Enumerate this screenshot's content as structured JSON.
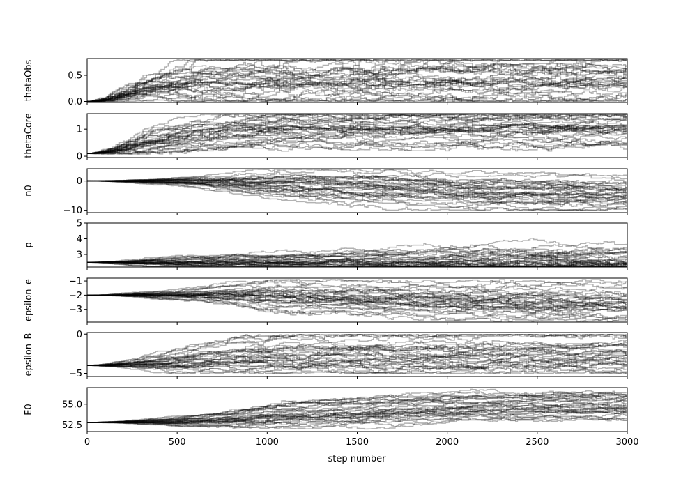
{
  "chart_data": {
    "type": "line",
    "title": "",
    "xlabel": "step number",
    "xlim": [
      0,
      3000
    ],
    "xticks": [
      0,
      500,
      1000,
      1500,
      2000,
      2500,
      3000
    ],
    "xtick_labels": [
      "0",
      "500",
      "1000",
      "1500",
      "2000",
      "2500",
      "3000"
    ],
    "n_steps": 3000,
    "n_walkers": 32,
    "series_color": "#000000",
    "series_alpha": 0.3,
    "grid": false,
    "legend": "none",
    "panels": [
      {
        "ylabel": "thetaObs",
        "ylim": [
          -0.02,
          0.82
        ],
        "yticks": [
          0.0,
          0.5
        ],
        "ytick_labels": [
          "0.0",
          "0.5"
        ],
        "start": 0.0,
        "low": 0.0,
        "high": 0.8,
        "center": [
          [
            0,
            0.0
          ],
          [
            300,
            0.35
          ],
          [
            3000,
            0.4
          ]
        ],
        "spread": [
          [
            0,
            0.0
          ],
          [
            200,
            0.15
          ],
          [
            600,
            0.3
          ],
          [
            3000,
            0.3
          ]
        ]
      },
      {
        "ylabel": "thetaCore",
        "ylim": [
          -0.05,
          1.57
        ],
        "yticks": [
          0,
          1
        ],
        "ytick_labels": [
          "0",
          "1"
        ],
        "start": 0.1,
        "low": 0.08,
        "high": 1.55,
        "center": [
          [
            0,
            0.1
          ],
          [
            300,
            0.6
          ],
          [
            800,
            0.9
          ],
          [
            3000,
            0.95
          ]
        ],
        "spread": [
          [
            0,
            0.0
          ],
          [
            200,
            0.3
          ],
          [
            700,
            0.45
          ],
          [
            3000,
            0.45
          ]
        ]
      },
      {
        "ylabel": "n0",
        "ylim": [
          -10.8,
          4.2
        ],
        "yticks": [
          0,
          -10
        ],
        "ytick_labels": [
          "0",
          "−10"
        ],
        "start": 0.0,
        "low": -10.0,
        "high": 4.0,
        "center": [
          [
            0,
            0.0
          ],
          [
            500,
            -0.5
          ],
          [
            1000,
            -2.0
          ],
          [
            1500,
            -3.0
          ],
          [
            2000,
            -4.5
          ],
          [
            3000,
            -5.5
          ]
        ],
        "spread": [
          [
            0,
            0.0
          ],
          [
            500,
            1.0
          ],
          [
            1000,
            3.0
          ],
          [
            2000,
            3.5
          ],
          [
            3000,
            3.5
          ]
        ]
      },
      {
        "ylabel": "p",
        "ylim": [
          2.2,
          5.0
        ],
        "yticks": [
          3,
          4,
          5
        ],
        "ytick_labels": [
          "3",
          "4",
          "5"
        ],
        "start": 2.5,
        "low": 2.2,
        "high": 5.0,
        "center": [
          [
            0,
            2.5
          ],
          [
            500,
            2.6
          ],
          [
            1500,
            2.7
          ],
          [
            2500,
            2.8
          ],
          [
            3000,
            2.7
          ]
        ],
        "spread": [
          [
            0,
            0.0
          ],
          [
            400,
            0.3
          ],
          [
            1500,
            0.5
          ],
          [
            2500,
            0.8
          ],
          [
            3000,
            0.7
          ]
        ]
      },
      {
        "ylabel": "epsilon_e",
        "ylim": [
          -3.9,
          -0.8
        ],
        "yticks": [
          -1,
          -2,
          -3
        ],
        "ytick_labels": [
          "−1",
          "−2",
          "−3"
        ],
        "start": -2.0,
        "low": -3.85,
        "high": -0.9,
        "center": [
          [
            0,
            -2.0
          ],
          [
            700,
            -2.0
          ],
          [
            1500,
            -2.4
          ],
          [
            2500,
            -2.6
          ],
          [
            3000,
            -2.6
          ]
        ],
        "spread": [
          [
            0,
            0.0
          ],
          [
            500,
            0.3
          ],
          [
            1000,
            0.7
          ],
          [
            3000,
            0.8
          ]
        ]
      },
      {
        "ylabel": "epsilon_B",
        "ylim": [
          -5.4,
          0.2
        ],
        "yticks": [
          0,
          -5
        ],
        "ytick_labels": [
          "0",
          "−5"
        ],
        "start": -4.0,
        "low": -5.0,
        "high": -0.05,
        "center": [
          [
            0,
            -4.0
          ],
          [
            400,
            -3.6
          ],
          [
            800,
            -2.8
          ],
          [
            3000,
            -2.6
          ]
        ],
        "spread": [
          [
            0,
            0.0
          ],
          [
            300,
            0.6
          ],
          [
            800,
            1.4
          ],
          [
            3000,
            1.5
          ]
        ]
      },
      {
        "ylabel": "E0",
        "ylim": [
          51.7,
          57.0
        ],
        "yticks": [
          52.5,
          55.0
        ],
        "ytick_labels": [
          "52.5",
          "55.0"
        ],
        "start": 52.8,
        "low": 52.0,
        "high": 56.8,
        "center": [
          [
            0,
            52.8
          ],
          [
            500,
            53.0
          ],
          [
            1000,
            53.8
          ],
          [
            2000,
            54.8
          ],
          [
            3000,
            55.0
          ]
        ],
        "spread": [
          [
            0,
            0.0
          ],
          [
            500,
            0.4
          ],
          [
            1000,
            1.0
          ],
          [
            3000,
            1.0
          ]
        ]
      }
    ]
  }
}
